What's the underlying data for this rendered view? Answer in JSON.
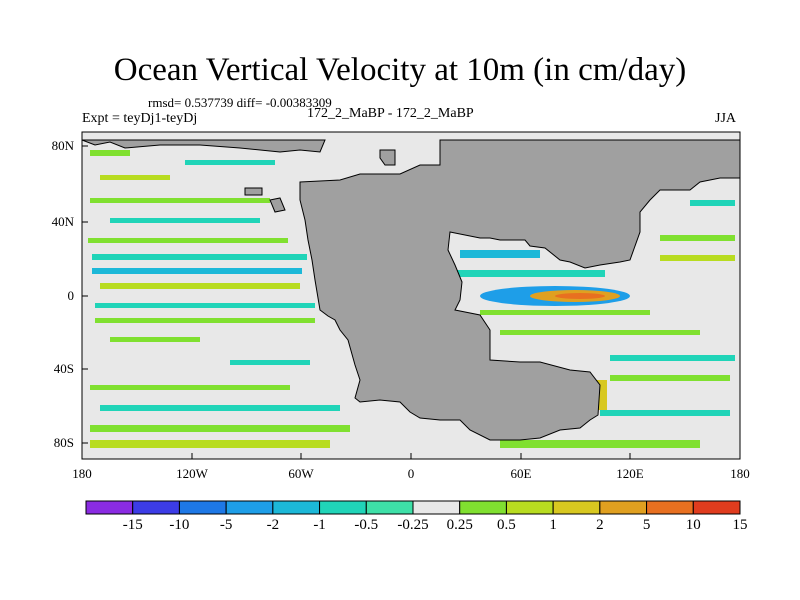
{
  "title": "Ocean Vertical Velocity at 10m (in cm/day)",
  "stats": "rmsd= 0.537739 diff= -0.00383309",
  "left_label": "Expt = teyDj1-teyDj",
  "center_label": "172_2_MaBP - 172_2_MaBP",
  "right_label": "JJA",
  "lat_ticks": [
    "80N",
    "40N",
    "0",
    "40S",
    "80S"
  ],
  "lon_ticks": [
    "180",
    "120W",
    "60W",
    "0",
    "60E",
    "120E",
    "180"
  ],
  "colorbar": {
    "labels": [
      "-15",
      "-10",
      "-5",
      "-2",
      "-1",
      "-0.5",
      "-0.25",
      "0.25",
      "0.5",
      "1",
      "2",
      "5",
      "10",
      "15"
    ],
    "colors": [
      "#8a2be2",
      "#3c3ce6",
      "#1e78e6",
      "#1e9ee8",
      "#1cb8d8",
      "#20d4b8",
      "#3ee0a8",
      "#e8e8e8",
      "#80e030",
      "#b8dc20",
      "#d8c820",
      "#e0a020",
      "#e87020",
      "#e03c1e"
    ]
  },
  "palette": {
    "land": "#a0a0a0",
    "background": "#e8e8e8"
  }
}
